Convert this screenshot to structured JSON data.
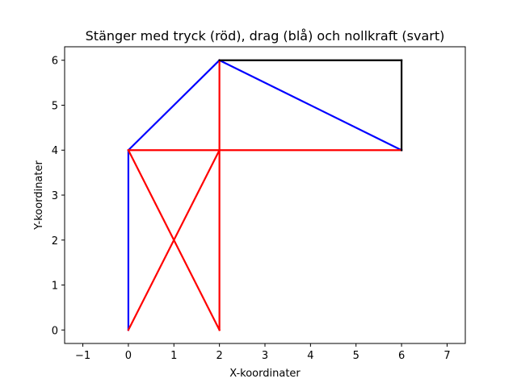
{
  "chart_data": {
    "type": "line",
    "title": "Stänger med tryck (röd), drag (blå) och nollkraft (svart)",
    "xlabel": "X-koordinater",
    "ylabel": "Y-koordinater",
    "xlim": [
      -1.4,
      7.4
    ],
    "ylim": [
      -0.3,
      6.3
    ],
    "xticks": [
      -1,
      0,
      1,
      2,
      3,
      4,
      5,
      6,
      7
    ],
    "yticks": [
      0,
      1,
      2,
      3,
      4,
      5,
      6
    ],
    "grid": false,
    "colors": {
      "compression": "#ff0000",
      "tension": "#0000ff",
      "zero": "#000000"
    },
    "members": [
      {
        "x": [
          0,
          0
        ],
        "y": [
          0,
          4
        ],
        "force": "tension"
      },
      {
        "x": [
          0,
          2
        ],
        "y": [
          4,
          6
        ],
        "force": "tension"
      },
      {
        "x": [
          2,
          6
        ],
        "y": [
          6,
          4
        ],
        "force": "tension"
      },
      {
        "x": [
          0,
          2
        ],
        "y": [
          4,
          0
        ],
        "force": "compression"
      },
      {
        "x": [
          0,
          2
        ],
        "y": [
          0,
          4
        ],
        "force": "compression"
      },
      {
        "x": [
          2,
          2
        ],
        "y": [
          0,
          6
        ],
        "force": "compression"
      },
      {
        "x": [
          0,
          6
        ],
        "y": [
          4,
          4
        ],
        "force": "compression"
      },
      {
        "x": [
          2,
          6
        ],
        "y": [
          6,
          6
        ],
        "force": "zero"
      },
      {
        "x": [
          6,
          6
        ],
        "y": [
          6,
          4
        ],
        "force": "zero"
      }
    ]
  }
}
